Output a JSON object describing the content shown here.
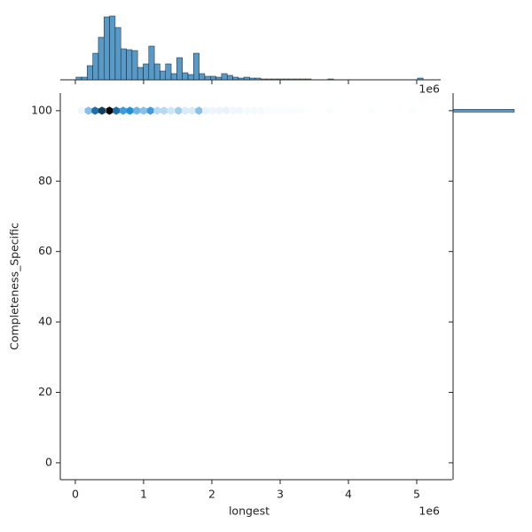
{
  "chart_data": [
    {
      "type": "hexbin",
      "xlabel": "longest",
      "ylabel": "Completeness_Specific",
      "x_offset_label": "1e6",
      "color": "#1f77b4",
      "xlim": [
        -0.22,
        5.52
      ],
      "ylim": [
        -4.8,
        105
      ],
      "xticks": [
        0,
        1,
        2,
        3,
        4,
        5
      ],
      "yticks": [
        0,
        20,
        40,
        60,
        80,
        100
      ],
      "x": [
        0.09,
        0.19,
        0.29,
        0.39,
        0.5,
        0.6,
        0.7,
        0.8,
        0.9,
        1.0,
        1.1,
        1.2,
        1.3,
        1.4,
        1.51,
        1.61,
        1.71,
        1.81,
        1.91,
        2.01,
        2.11,
        2.21,
        2.31,
        2.41,
        2.52,
        2.62,
        2.72,
        2.82,
        2.92,
        3.02,
        3.12,
        3.22,
        3.32,
        3.73,
        4.33,
        4.94
      ],
      "y": [
        100,
        100,
        100,
        100,
        100,
        100,
        100,
        100,
        100,
        100,
        100,
        100,
        100,
        100,
        100,
        100,
        100,
        100,
        100,
        100,
        100,
        100,
        100,
        100,
        100,
        100,
        100,
        100,
        100,
        100,
        100,
        100,
        100,
        100,
        100,
        100
      ],
      "counts": [
        3,
        25,
        55,
        70,
        90,
        55,
        40,
        45,
        30,
        25,
        40,
        15,
        15,
        10,
        20,
        8,
        8,
        25,
        5,
        4,
        4,
        5,
        3,
        3,
        2,
        2,
        2,
        1,
        1,
        1,
        1,
        1,
        1,
        1,
        1,
        1
      ]
    },
    {
      "type": "histogram",
      "orientation": "vertical",
      "x_offset_label": "1e6",
      "color": "#1f77b4",
      "xlim": [
        -0.22,
        5.52
      ],
      "ylim": [
        0,
        75
      ],
      "xticks": [
        0,
        1,
        2,
        3,
        4,
        5
      ],
      "bins": [
        0.01,
        0.092,
        0.174,
        0.256,
        0.338,
        0.42,
        0.502,
        0.584,
        0.666,
        0.748,
        0.83,
        0.912,
        0.994,
        1.076,
        1.158,
        1.24,
        1.322,
        1.404,
        1.486,
        1.568,
        1.65,
        1.732,
        1.814,
        1.896,
        1.978,
        2.06,
        2.142,
        2.224,
        2.306,
        2.388,
        2.47,
        2.552,
        2.634,
        2.716,
        2.798,
        2.88,
        2.962,
        3.044,
        3.126,
        3.208,
        3.29,
        3.372,
        3.454,
        3.536,
        3.618,
        3.7,
        3.782,
        3.864,
        3.946,
        4.028,
        4.11,
        4.192,
        4.274,
        4.356,
        4.438,
        4.52,
        4.602,
        4.684,
        4.766,
        4.848,
        4.93,
        5.012,
        5.094
      ],
      "counts": [
        3,
        3,
        16,
        30,
        48,
        71,
        72,
        59,
        35,
        34,
        33,
        14,
        18,
        38,
        18,
        10,
        18,
        7,
        25,
        8,
        6,
        30,
        7,
        4,
        4,
        3,
        7,
        5,
        3,
        2,
        3,
        2,
        2,
        1,
        1,
        1,
        1,
        1,
        1,
        1,
        1,
        1,
        0,
        0,
        0,
        1,
        0,
        0,
        0,
        0,
        0,
        0,
        0,
        0,
        0,
        0,
        0,
        0,
        0,
        0,
        0,
        2
      ]
    },
    {
      "type": "histogram",
      "orientation": "horizontal",
      "color": "#1f77b4",
      "xlim": [
        0,
        860
      ],
      "ylim": [
        -4.8,
        105
      ],
      "yticks": [
        0,
        20,
        40,
        60,
        80,
        100
      ],
      "bins": [
        99.6,
        100.4
      ],
      "counts": [
        860
      ]
    }
  ]
}
